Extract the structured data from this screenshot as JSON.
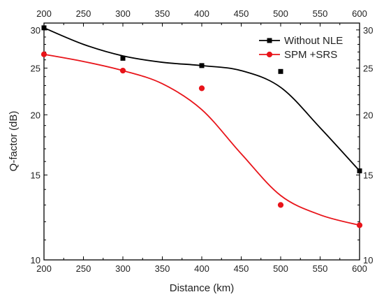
{
  "chart_data": {
    "type": "line",
    "xlabel": "Distance (km)",
    "ylabel": "Q-factor (dB)",
    "xlim": [
      200,
      600
    ],
    "ylim": [
      10,
      31
    ],
    "y_scale": "log",
    "x_ticks": [
      200,
      250,
      300,
      350,
      400,
      450,
      500,
      550,
      600
    ],
    "y_ticks": [
      10,
      15,
      20,
      25,
      30
    ],
    "top_axis_ticks": true,
    "right_axis_ticks": true,
    "grid": false,
    "legend_position": "top-right",
    "series": [
      {
        "name": "Without NLE",
        "color": "#000000",
        "marker": "square",
        "points": [
          [
            200,
            30.3
          ],
          [
            300,
            26.2
          ],
          [
            400,
            25.3
          ],
          [
            500,
            24.6
          ],
          [
            600,
            15.3
          ]
        ],
        "fit": [
          [
            200,
            30.3
          ],
          [
            250,
            28.0
          ],
          [
            300,
            26.5
          ],
          [
            350,
            25.7
          ],
          [
            400,
            25.3
          ],
          [
            450,
            24.7
          ],
          [
            500,
            22.8
          ],
          [
            550,
            18.8
          ],
          [
            600,
            15.3
          ]
        ]
      },
      {
        "name": "SPM +SRS",
        "color": "#e8141a",
        "marker": "circle",
        "points": [
          [
            200,
            26.7
          ],
          [
            300,
            24.7
          ],
          [
            400,
            22.7
          ],
          [
            500,
            13.0
          ],
          [
            600,
            11.8
          ]
        ],
        "fit": [
          [
            200,
            26.7
          ],
          [
            250,
            25.8
          ],
          [
            300,
            24.7
          ],
          [
            350,
            23.2
          ],
          [
            400,
            20.5
          ],
          [
            450,
            16.6
          ],
          [
            500,
            13.6
          ],
          [
            550,
            12.4
          ],
          [
            600,
            11.8
          ]
        ]
      }
    ]
  }
}
